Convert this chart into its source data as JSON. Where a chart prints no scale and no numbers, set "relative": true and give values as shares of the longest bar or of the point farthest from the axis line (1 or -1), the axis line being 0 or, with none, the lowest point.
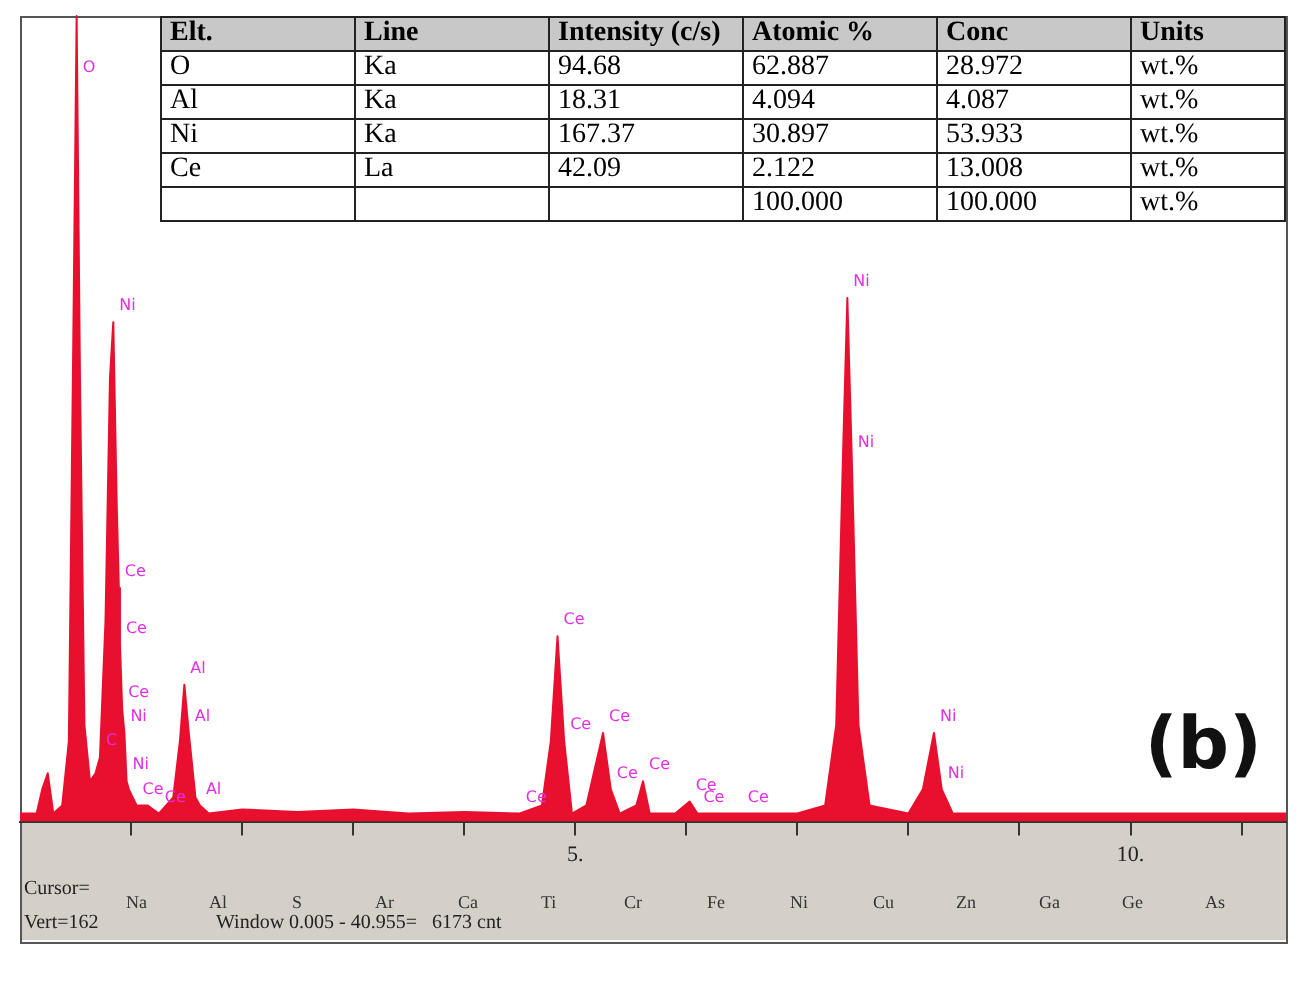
{
  "chart_data": [
    {
      "type": "area",
      "title": "(b)",
      "relative": true,
      "color": "#e8102e",
      "x": [
        0.0,
        0.15,
        0.2,
        0.25,
        0.3,
        0.38,
        0.44,
        0.48,
        0.51,
        0.54,
        0.58,
        0.63,
        0.68,
        0.72,
        0.77,
        0.81,
        0.84,
        0.87,
        0.89,
        0.9,
        0.92,
        0.94,
        0.96,
        0.98,
        1.05,
        1.15,
        1.25,
        1.38,
        1.44,
        1.48,
        1.52,
        1.58,
        1.62,
        1.7,
        2.0,
        2.5,
        3.0,
        3.5,
        4.0,
        4.5,
        4.7,
        4.78,
        4.84,
        4.9,
        4.97,
        5.1,
        5.2,
        5.25,
        5.32,
        5.4,
        5.55,
        5.61,
        5.67,
        5.9,
        6.03,
        6.1,
        6.5,
        7.0,
        7.25,
        7.35,
        7.41,
        7.45,
        7.49,
        7.55,
        7.65,
        8.0,
        8.13,
        8.23,
        8.3,
        8.4,
        9.0,
        10.0,
        11.0,
        11.4
      ],
      "values": [
        0.01,
        0.01,
        0.04,
        0.06,
        0.01,
        0.02,
        0.1,
        0.6,
        1.0,
        0.55,
        0.12,
        0.05,
        0.06,
        0.08,
        0.25,
        0.55,
        0.62,
        0.4,
        0.29,
        0.22,
        0.14,
        0.11,
        0.05,
        0.04,
        0.02,
        0.02,
        0.01,
        0.03,
        0.1,
        0.17,
        0.11,
        0.03,
        0.02,
        0.01,
        0.015,
        0.012,
        0.015,
        0.01,
        0.012,
        0.01,
        0.02,
        0.1,
        0.23,
        0.1,
        0.01,
        0.02,
        0.08,
        0.11,
        0.04,
        0.01,
        0.02,
        0.05,
        0.01,
        0.01,
        0.025,
        0.01,
        0.01,
        0.01,
        0.02,
        0.12,
        0.45,
        0.65,
        0.45,
        0.12,
        0.02,
        0.01,
        0.04,
        0.11,
        0.04,
        0.01,
        0.01,
        0.01,
        0.01,
        0.01
      ],
      "xlim": [
        0,
        11.4
      ],
      "xticks": [
        {
          "value": 1,
          "label": null
        },
        {
          "value": 2,
          "label": null
        },
        {
          "value": 3,
          "label": null
        },
        {
          "value": 4,
          "label": null
        },
        {
          "value": 5,
          "label": "5."
        },
        {
          "value": 6,
          "label": null
        },
        {
          "value": 7,
          "label": null
        },
        {
          "value": 8,
          "label": null
        },
        {
          "value": 9,
          "label": null
        },
        {
          "value": 10,
          "label": "10."
        },
        {
          "value": 11,
          "label": null
        }
      ],
      "annotations": [
        {
          "text": "O",
          "x": 0.51,
          "y": 1.0
        },
        {
          "text": "Ni",
          "x": 0.84,
          "y": 0.62
        },
        {
          "text": "Ce",
          "x": 0.89,
          "y": 0.29
        },
        {
          "text": "Ce",
          "x": 0.9,
          "y": 0.22
        },
        {
          "text": "C",
          "x": 0.72,
          "y": 0.08
        },
        {
          "text": "Ce",
          "x": 0.92,
          "y": 0.14
        },
        {
          "text": "Ni",
          "x": 0.94,
          "y": 0.11
        },
        {
          "text": "Ce",
          "x": 1.05,
          "y": 0.02
        },
        {
          "text": "Al",
          "x": 1.48,
          "y": 0.17
        },
        {
          "text": "Al",
          "x": 1.52,
          "y": 0.11
        },
        {
          "text": "Ni",
          "x": 0.96,
          "y": 0.05
        },
        {
          "text": "Ce",
          "x": 1.25,
          "y": 0.01
        },
        {
          "text": "Al",
          "x": 1.62,
          "y": 0.02
        },
        {
          "text": "Ce",
          "x": 4.5,
          "y": 0.01
        },
        {
          "text": "Ce",
          "x": 4.84,
          "y": 0.23
        },
        {
          "text": "Ce",
          "x": 4.9,
          "y": 0.1
        },
        {
          "text": "Ce",
          "x": 5.25,
          "y": 0.11
        },
        {
          "text": "Ce",
          "x": 5.32,
          "y": 0.04
        },
        {
          "text": "Ce",
          "x": 5.61,
          "y": 0.05
        },
        {
          "text": "Ce",
          "x": 6.03,
          "y": 0.025
        },
        {
          "text": "Ce",
          "x": 6.1,
          "y": 0.01
        },
        {
          "text": "Ce",
          "x": 6.5,
          "y": 0.01
        },
        {
          "text": "Ni",
          "x": 7.45,
          "y": 0.65
        },
        {
          "text": "Ni",
          "x": 7.49,
          "y": 0.45
        },
        {
          "text": "Ni",
          "x": 8.23,
          "y": 0.11
        },
        {
          "text": "Ni",
          "x": 8.3,
          "y": 0.04
        },
        "Cursor=",
        "Na",
        "Al",
        "S",
        "Ar",
        "Ca",
        "Ti",
        "Cr",
        "Fe",
        "Ni",
        "Cu",
        "Zn",
        "Ga",
        "Ge",
        "As",
        "Vert=162",
        "Window 0.005 - 40.955=   6173 cnt"
      ]
    },
    {
      "type": "other",
      "annotations": [
        "Elt.",
        "Line",
        "Intensity (c/s)",
        "Atomic %",
        "Conc",
        "Units",
        "O",
        "Ka",
        "94.68",
        "62.887",
        "28.972",
        "wt.%",
        "Al",
        "Ka",
        "18.31",
        "4.094",
        "4.087",
        "wt.%",
        "Ni",
        "Ka",
        "167.37",
        "30.897",
        "53.933",
        "wt.%",
        "Ce",
        "La",
        "42.09",
        "2.122",
        "13.008",
        "wt.%",
        "100.000",
        "100.000",
        "wt.%"
      ]
    }
  ]
}
